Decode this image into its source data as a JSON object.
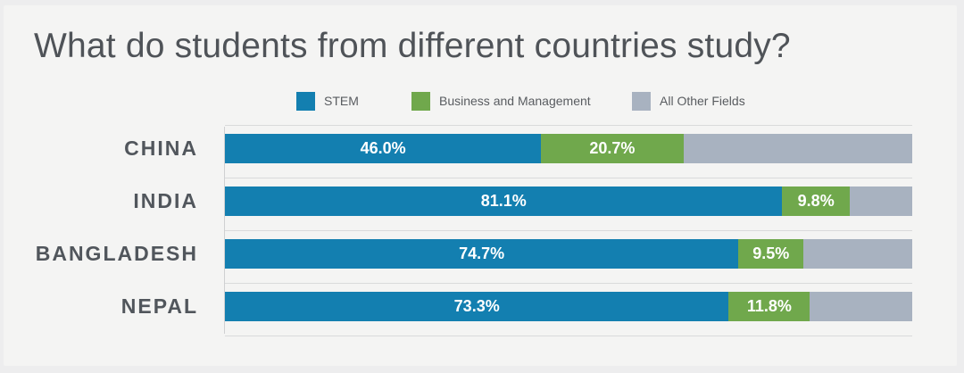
{
  "title": "What do students from different countries study?",
  "legend": [
    {
      "label": "STEM",
      "color": "#137fb0"
    },
    {
      "label": "Business and Management",
      "color": "#70a84c"
    },
    {
      "label": "All Other Fields",
      "color": "#a8b2c0"
    }
  ],
  "chart_data": {
    "type": "bar",
    "orientation": "horizontal",
    "stacked": true,
    "title": "What do students from different countries study?",
    "categories": [
      "CHINA",
      "INDIA",
      "BANGLADESH",
      "NEPAL"
    ],
    "series": [
      {
        "name": "STEM",
        "values": [
          46.0,
          81.1,
          74.7,
          73.3
        ],
        "labels": [
          "46.0%",
          "81.1%",
          "74.7%",
          "73.3%"
        ],
        "color": "#137fb0"
      },
      {
        "name": "Business and Management",
        "values": [
          20.7,
          9.8,
          9.5,
          11.8
        ],
        "labels": [
          "20.7%",
          "9.8%",
          "9.5%",
          "11.8%"
        ],
        "color": "#70a84c"
      },
      {
        "name": "All Other Fields",
        "values": [
          33.3,
          9.1,
          15.8,
          14.9
        ],
        "labels": [
          "",
          "",
          "",
          ""
        ],
        "color": "#a8b2c0"
      }
    ],
    "xlim": [
      0,
      100
    ],
    "grid": true,
    "legend_position": "top-center"
  }
}
